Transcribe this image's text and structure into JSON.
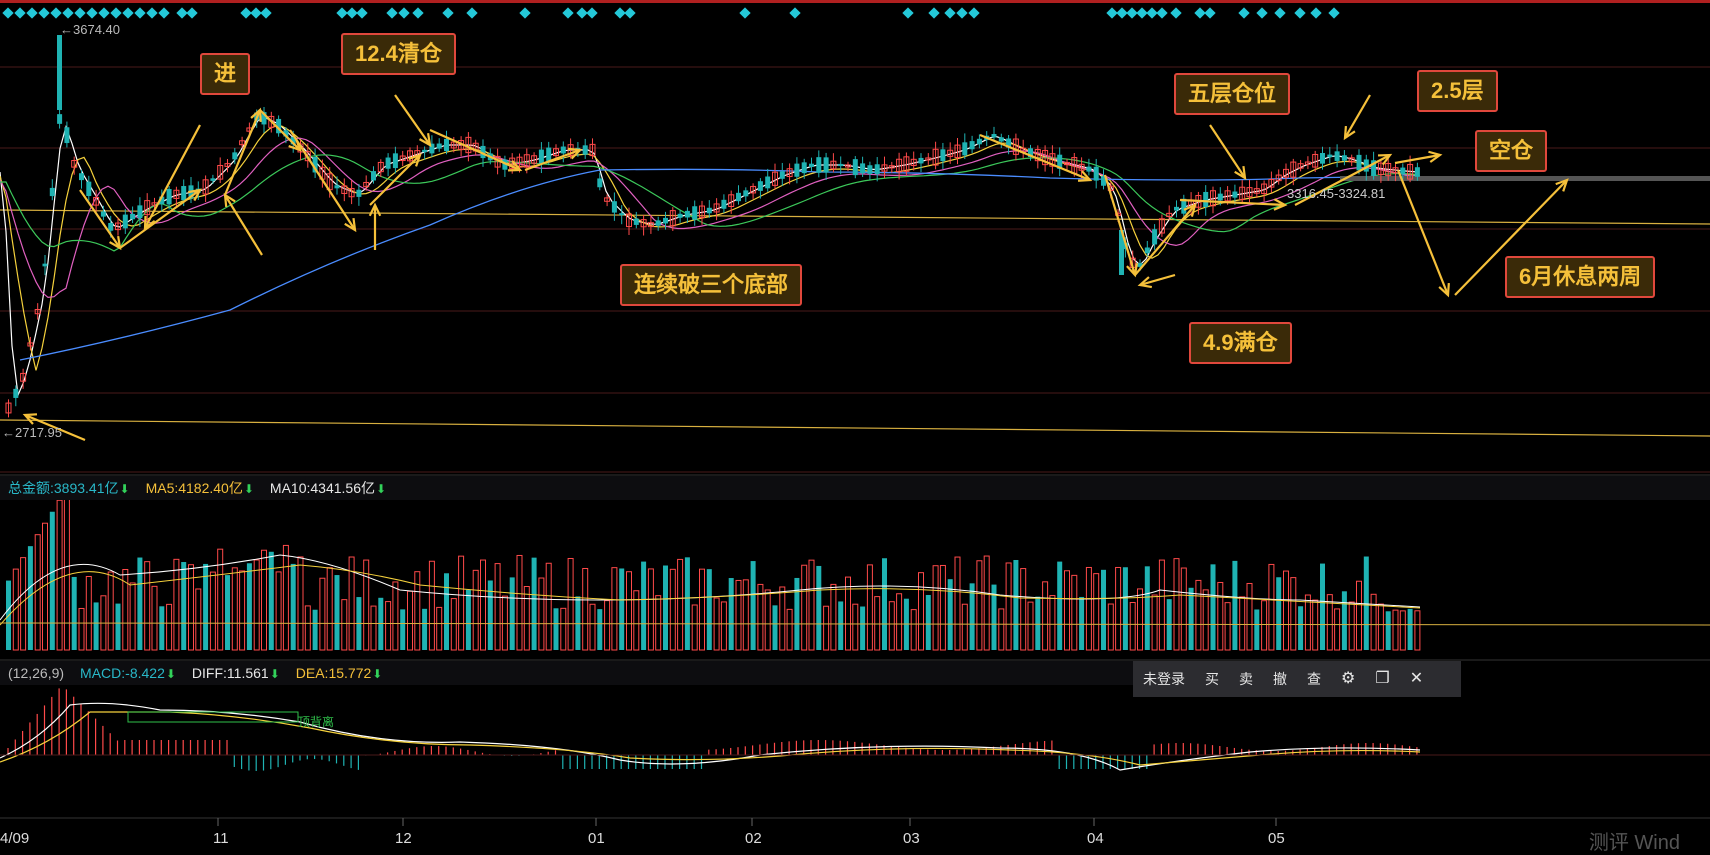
{
  "price_labels": {
    "high": "←3674.40",
    "low": "←2717.95",
    "range": "3316.45-3324.81"
  },
  "annotations": [
    {
      "id": "jin",
      "text": "进"
    },
    {
      "id": "clear124",
      "text": "12.4清仓"
    },
    {
      "id": "bottoms",
      "text": "连续破三个底部"
    },
    {
      "id": "five",
      "text": "五层仓位"
    },
    {
      "id": "twofive",
      "text": "2.5层"
    },
    {
      "id": "empty",
      "text": "空仓"
    },
    {
      "id": "full49",
      "text": "4.9满仓"
    },
    {
      "id": "rest",
      "text": "6月休息两周"
    }
  ],
  "volume_bar": {
    "total_label": "总金额:3893.41亿",
    "ma5_label": "MA5:4182.40亿",
    "ma10_label": "MA10:4341.56亿"
  },
  "macd_bar": {
    "params": "(12,26,9)",
    "macd_label": "MACD:-8.422",
    "diff_label": "DIFF:11.561",
    "dea_label": "DEA:15.772"
  },
  "divergence_label": "顶背离",
  "toolbar": {
    "login": "未登录",
    "buy": "买",
    "sell": "卖",
    "cancel": "撤",
    "query": "查",
    "settings_icon": "gear-icon",
    "window_icon": "restore-icon",
    "close_icon": "close-icon"
  },
  "x_axis": [
    "4/09",
    "11",
    "12",
    "01",
    "02",
    "03",
    "04",
    "05"
  ],
  "watermark": "测评 Wind",
  "colors": {
    "up": "#ff4a4a",
    "down": "#1fb3b3",
    "ma5": "#ffffff",
    "ma10": "#f5d13c",
    "ma20": "#e060c0",
    "ma30": "#3cc85a",
    "ma60": "#4a8cff",
    "callout_text": "#f5c03a",
    "callout_border": "#e0483c",
    "arrow": "#f5c03a"
  }
}
